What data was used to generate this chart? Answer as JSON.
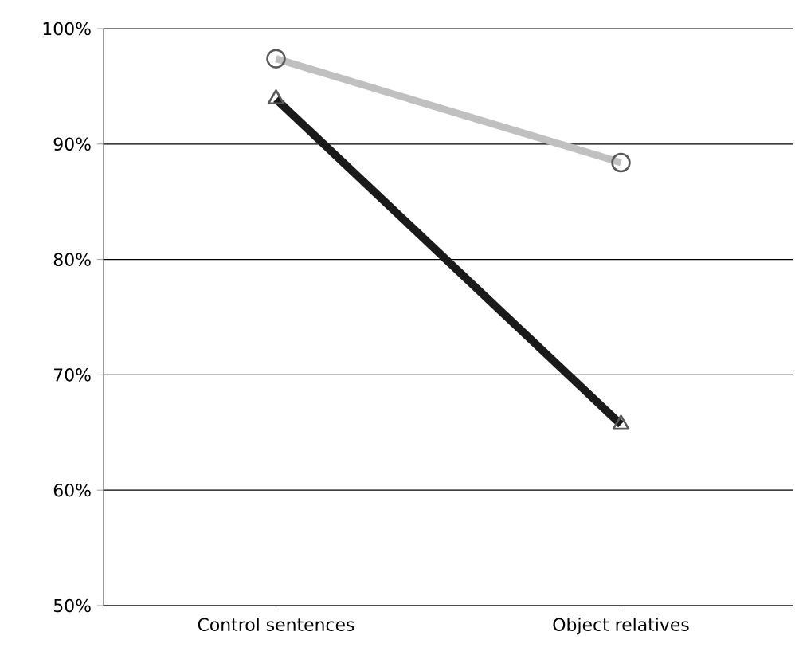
{
  "chart_data": {
    "type": "line",
    "categories": [
      "Control sentences",
      "Object relatives"
    ],
    "series": [
      {
        "color": "#c0c0c0",
        "marker": "circle",
        "values": [
          97.4,
          88.4
        ]
      },
      {
        "color": "#1a1a1a",
        "marker": "triangle",
        "values": [
          93.9,
          65.7
        ]
      }
    ],
    "ylim": [
      50,
      100
    ],
    "yticks": [
      {
        "value": 50,
        "label": "50%"
      },
      {
        "value": 60,
        "label": "60%"
      },
      {
        "value": 70,
        "label": "70%"
      },
      {
        "value": 80,
        "label": "80%"
      },
      {
        "value": 90,
        "label": "90%"
      },
      {
        "value": 100,
        "label": "100%"
      }
    ],
    "grid": "y"
  }
}
